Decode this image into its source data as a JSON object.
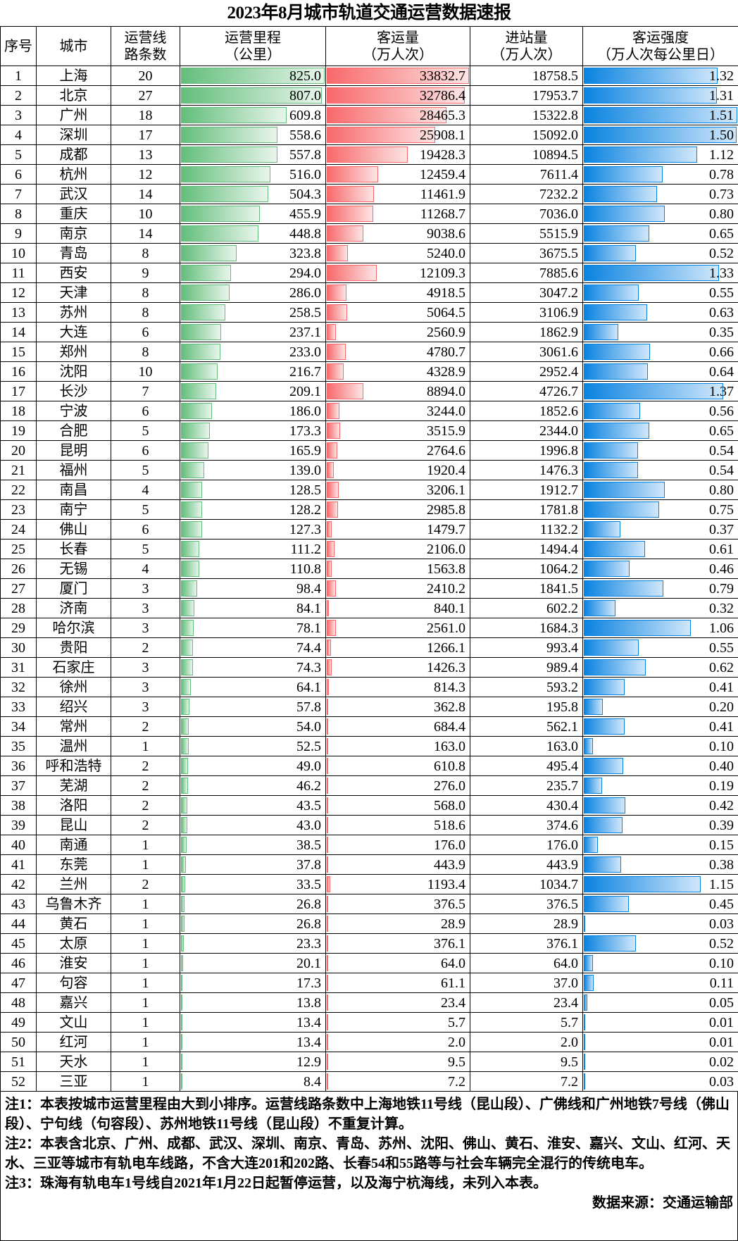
{
  "title": "2023年8月城市轨道交通运营数据速报",
  "headers": [
    "序号",
    "城市",
    "运营线\n路条数",
    "运营里程\n（公里）",
    "客运量\n（万人次）",
    "进站量\n（万人次）",
    "客运强度\n（万人次每公里日）"
  ],
  "colors": {
    "mileage_bar": "#63be7b",
    "passenger_bar": "#f8696b",
    "intensity_bar": "#0a83e0"
  },
  "rows": [
    [
      "1",
      "上海",
      "20",
      "825.0",
      "33832.7",
      "18758.5",
      "1.32"
    ],
    [
      "2",
      "北京",
      "27",
      "807.0",
      "32786.4",
      "17953.7",
      "1.31"
    ],
    [
      "3",
      "广州",
      "18",
      "609.8",
      "28465.3",
      "15322.8",
      "1.51"
    ],
    [
      "4",
      "深圳",
      "17",
      "558.6",
      "25908.1",
      "15092.0",
      "1.50"
    ],
    [
      "5",
      "成都",
      "13",
      "557.8",
      "19428.3",
      "10894.5",
      "1.12"
    ],
    [
      "6",
      "杭州",
      "12",
      "516.0",
      "12459.4",
      "7611.4",
      "0.78"
    ],
    [
      "7",
      "武汉",
      "14",
      "504.3",
      "11461.9",
      "7232.2",
      "0.73"
    ],
    [
      "8",
      "重庆",
      "10",
      "455.9",
      "11268.7",
      "7036.0",
      "0.80"
    ],
    [
      "9",
      "南京",
      "14",
      "448.8",
      "9038.6",
      "5515.9",
      "0.65"
    ],
    [
      "10",
      "青岛",
      "8",
      "323.8",
      "5240.0",
      "3675.5",
      "0.52"
    ],
    [
      "11",
      "西安",
      "9",
      "294.0",
      "12109.3",
      "7885.6",
      "1.33"
    ],
    [
      "12",
      "天津",
      "8",
      "286.0",
      "4918.5",
      "3047.2",
      "0.55"
    ],
    [
      "13",
      "苏州",
      "8",
      "258.5",
      "5064.5",
      "3106.9",
      "0.63"
    ],
    [
      "14",
      "大连",
      "6",
      "237.1",
      "2560.9",
      "1862.9",
      "0.35"
    ],
    [
      "15",
      "郑州",
      "8",
      "233.0",
      "4780.7",
      "3061.6",
      "0.66"
    ],
    [
      "16",
      "沈阳",
      "10",
      "216.7",
      "4328.9",
      "2952.4",
      "0.64"
    ],
    [
      "17",
      "长沙",
      "7",
      "209.1",
      "8894.0",
      "4726.7",
      "1.37"
    ],
    [
      "18",
      "宁波",
      "6",
      "186.0",
      "3244.0",
      "1852.6",
      "0.56"
    ],
    [
      "19",
      "合肥",
      "5",
      "173.3",
      "3515.9",
      "2344.0",
      "0.65"
    ],
    [
      "20",
      "昆明",
      "6",
      "165.9",
      "2764.6",
      "1996.8",
      "0.54"
    ],
    [
      "21",
      "福州",
      "5",
      "139.0",
      "1920.4",
      "1476.3",
      "0.54"
    ],
    [
      "22",
      "南昌",
      "4",
      "128.5",
      "3206.1",
      "1912.7",
      "0.80"
    ],
    [
      "23",
      "南宁",
      "5",
      "128.2",
      "2985.8",
      "1781.8",
      "0.75"
    ],
    [
      "24",
      "佛山",
      "6",
      "127.3",
      "1479.7",
      "1132.2",
      "0.37"
    ],
    [
      "25",
      "长春",
      "5",
      "111.2",
      "2106.0",
      "1494.4",
      "0.61"
    ],
    [
      "26",
      "无锡",
      "4",
      "110.8",
      "1563.8",
      "1064.2",
      "0.46"
    ],
    [
      "27",
      "厦门",
      "3",
      "98.4",
      "2410.2",
      "1841.5",
      "0.79"
    ],
    [
      "28",
      "济南",
      "3",
      "84.1",
      "840.1",
      "602.2",
      "0.32"
    ],
    [
      "29",
      "哈尔滨",
      "3",
      "78.1",
      "2561.0",
      "1684.3",
      "1.06"
    ],
    [
      "30",
      "贵阳",
      "2",
      "74.4",
      "1266.1",
      "993.4",
      "0.55"
    ],
    [
      "31",
      "石家庄",
      "3",
      "74.3",
      "1426.3",
      "989.4",
      "0.62"
    ],
    [
      "32",
      "徐州",
      "3",
      "64.1",
      "814.3",
      "593.2",
      "0.41"
    ],
    [
      "33",
      "绍兴",
      "3",
      "57.8",
      "362.8",
      "195.8",
      "0.20"
    ],
    [
      "34",
      "常州",
      "2",
      "54.0",
      "684.4",
      "562.1",
      "0.41"
    ],
    [
      "35",
      "温州",
      "1",
      "52.5",
      "163.0",
      "163.0",
      "0.10"
    ],
    [
      "36",
      "呼和浩特",
      "2",
      "49.0",
      "610.8",
      "495.4",
      "0.40"
    ],
    [
      "37",
      "芜湖",
      "2",
      "46.2",
      "276.0",
      "235.7",
      "0.19"
    ],
    [
      "38",
      "洛阳",
      "2",
      "43.5",
      "568.0",
      "430.4",
      "0.42"
    ],
    [
      "39",
      "昆山",
      "2",
      "43.0",
      "518.6",
      "374.6",
      "0.39"
    ],
    [
      "40",
      "南通",
      "1",
      "38.5",
      "176.0",
      "176.0",
      "0.15"
    ],
    [
      "41",
      "东莞",
      "1",
      "37.8",
      "443.9",
      "443.9",
      "0.38"
    ],
    [
      "42",
      "兰州",
      "2",
      "33.5",
      "1193.4",
      "1034.7",
      "1.15"
    ],
    [
      "43",
      "乌鲁木齐",
      "1",
      "26.8",
      "376.5",
      "376.5",
      "0.45"
    ],
    [
      "44",
      "黄石",
      "1",
      "26.8",
      "28.9",
      "28.9",
      "0.03"
    ],
    [
      "45",
      "太原",
      "1",
      "23.3",
      "376.1",
      "376.1",
      "0.52"
    ],
    [
      "46",
      "淮安",
      "1",
      "20.1",
      "64.0",
      "64.0",
      "0.10"
    ],
    [
      "47",
      "句容",
      "1",
      "17.3",
      "61.1",
      "37.0",
      "0.11"
    ],
    [
      "48",
      "嘉兴",
      "1",
      "13.8",
      "23.4",
      "23.4",
      "0.05"
    ],
    [
      "49",
      "文山",
      "1",
      "13.4",
      "5.7",
      "5.7",
      "0.01"
    ],
    [
      "50",
      "红河",
      "1",
      "13.4",
      "2.0",
      "2.0",
      "0.01"
    ],
    [
      "51",
      "天水",
      "1",
      "12.9",
      "9.5",
      "9.5",
      "0.02"
    ],
    [
      "52",
      "三亚",
      "1",
      "8.4",
      "7.2",
      "7.2",
      "0.03"
    ]
  ],
  "notes": [
    {
      "label": "注1：",
      "text": "本表按城市运营里程由大到小排序。运营线路条数中上海地铁11号线（昆山段）、广佛线和广州地铁7号线（佛山段）、宁句线（句容段）、苏州地铁11号线（昆山段）不重复计算。"
    },
    {
      "label": "注2：",
      "text": "本表含北京、广州、成都、武汉、深圳、南京、青岛、苏州、沈阳、佛山、黄石、淮安、嘉兴、文山、红河、天水、三亚等城市有轨电车线路，不含大连201和202路、长春54和55路等与社会车辆完全混行的传统电车。"
    },
    {
      "label": "注3：",
      "text": "珠海有轨电车1号线自2021年1月22日起暂停运营，以及海宁杭海线，未列入本表。"
    }
  ],
  "source": "数据来源：交通运输部"
}
